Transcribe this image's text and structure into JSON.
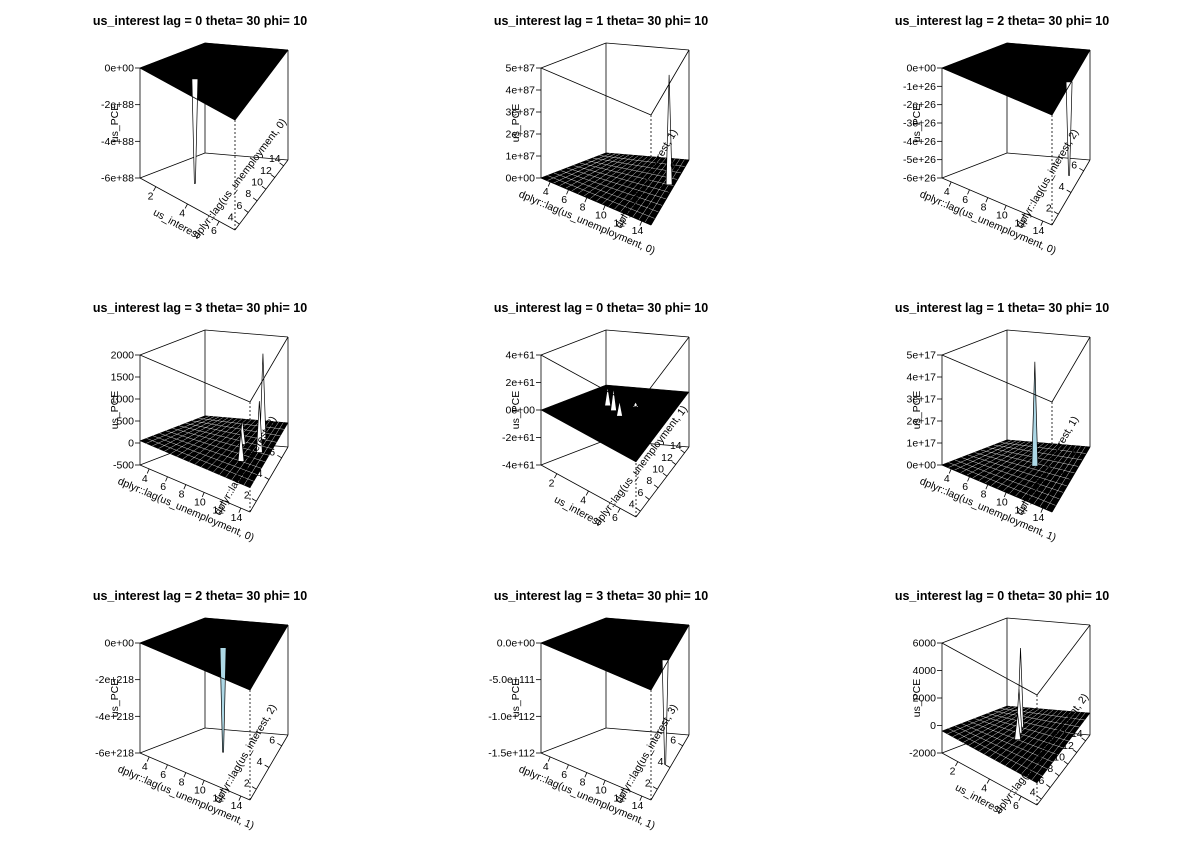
{
  "colors": {
    "axis": "#000000",
    "surface_dark": "#000000",
    "surface_fill": "#ffffff",
    "spike_fill": "#add8e6"
  },
  "panels": [
    {
      "title": "us_interest lag = 0 theta= 30 phi= 10",
      "zlabel": "us_PCE",
      "xlabel": "us_interest",
      "ylabel": "dplyr::lag(us_unemployment, 0)",
      "zticks": [
        "0e+00",
        "-2e+88",
        "-4e+88",
        "-6e+88"
      ],
      "xticks": [
        "2",
        "4",
        "6"
      ],
      "yticks": [
        "4",
        "6",
        "8",
        "10",
        "12",
        "14"
      ],
      "chart_data": {
        "type": "surface",
        "theta": 30,
        "phi": 10,
        "surface": "flat plane at top with one deep downward spike"
      }
    },
    {
      "title": "us_interest lag = 1 theta= 30 phi= 10",
      "zlabel": "us_PCE",
      "xlabel": "dplyr::lag(us_unemployment, 0)",
      "ylabel": "dplyr::lag(us_interest, 1)",
      "zticks": [
        "5e+87",
        "4e+87",
        "3e+87",
        "2e+87",
        "1e+87",
        "0e+00"
      ],
      "xticks": [
        "4",
        "6",
        "8",
        "10",
        "12",
        "14"
      ],
      "yticks": [
        "2",
        "4",
        "6"
      ],
      "chart_data": {
        "type": "surface",
        "theta": 30,
        "phi": 10,
        "surface": "flat mesh at bottom with one tall spike at back-right"
      }
    },
    {
      "title": "us_interest lag = 2 theta= 30 phi= 10",
      "zlabel": "us_PCE",
      "xlabel": "dplyr::lag(us_unemployment, 0)",
      "ylabel": "dplyr::lag(us_interest, 2)",
      "zticks": [
        "0e+00",
        "-1e+26",
        "-2e+26",
        "-3e+26",
        "-4e+26",
        "-5e+26",
        "-6e+26"
      ],
      "xticks": [
        "4",
        "6",
        "8",
        "10",
        "12",
        "14"
      ],
      "yticks": [
        "2",
        "4",
        "6"
      ],
      "chart_data": {
        "type": "surface",
        "theta": 30,
        "phi": 10,
        "surface": "flat plane at top with spike down at right edge"
      }
    },
    {
      "title": "us_interest lag = 3 theta= 30 phi= 10",
      "zlabel": "us_PCE",
      "xlabel": "dplyr::lag(us_unemployment, 0)",
      "ylabel": "dplyr::lag(us_interest, 3)",
      "zticks": [
        "2000",
        "1500",
        "1000",
        "500",
        "0",
        "-500"
      ],
      "xticks": [
        "4",
        "6",
        "8",
        "10",
        "12",
        "14"
      ],
      "yticks": [
        "2",
        "4",
        "6"
      ],
      "chart_data": {
        "type": "surface",
        "theta": 30,
        "phi": 10,
        "surface": "mesh near 0 with several spikes up to about 2000"
      }
    },
    {
      "title": "us_interest lag = 0 theta= 30 phi= 10",
      "zlabel": "us_PCE",
      "xlabel": "us_interest",
      "ylabel": "dplyr::lag(us_unemployment, 1)",
      "zticks": [
        "4e+61",
        "2e+61",
        "0e+00",
        "-2e+61",
        "-4e+61"
      ],
      "xticks": [
        "2",
        "4",
        "6"
      ],
      "yticks": [
        "4",
        "6",
        "8",
        "10",
        "12",
        "14"
      ],
      "chart_data": {
        "type": "surface",
        "theta": 30,
        "phi": 10,
        "surface": "flat plane at 0 with a few spikes to about 4e+61"
      }
    },
    {
      "title": "us_interest lag = 1 theta= 30 phi= 10",
      "zlabel": "us_PCE",
      "xlabel": "dplyr::lag(us_unemployment, 1)",
      "ylabel": "dplyr::lag(us_interest, 1)",
      "zticks": [
        "5e+17",
        "4e+17",
        "3e+17",
        "2e+17",
        "1e+17",
        "0e+00"
      ],
      "xticks": [
        "4",
        "6",
        "8",
        "10",
        "12",
        "14"
      ],
      "yticks": [
        "2",
        "4",
        "6"
      ],
      "chart_data": {
        "type": "surface",
        "theta": 30,
        "phi": 10,
        "surface": "flat mesh at bottom with one tall spike"
      }
    },
    {
      "title": "us_interest lag = 2 theta= 30 phi= 10",
      "zlabel": "us_PCE",
      "xlabel": "dplyr::lag(us_unemployment, 1)",
      "ylabel": "dplyr::lag(us_interest, 2)",
      "zticks": [
        "0e+00",
        "-2e+218",
        "-4e+218",
        "-6e+218"
      ],
      "xticks": [
        "4",
        "6",
        "8",
        "10",
        "12",
        "14"
      ],
      "yticks": [
        "2",
        "4",
        "6"
      ],
      "chart_data": {
        "type": "surface",
        "theta": 30,
        "phi": 10,
        "surface": "flat plane at top with one deep spike downward"
      }
    },
    {
      "title": "us_interest lag = 3 theta= 30 phi= 10",
      "zlabel": "us_PCE",
      "xlabel": "dplyr::lag(us_unemployment, 1)",
      "ylabel": "dplyr::lag(us_interest, 3)",
      "zticks": [
        "0.0e+00",
        "-5.0e+111",
        "-1.0e+112",
        "-1.5e+112"
      ],
      "xticks": [
        "4",
        "6",
        "8",
        "10",
        "12",
        "14"
      ],
      "yticks": [
        "2",
        "4",
        "6"
      ],
      "chart_data": {
        "type": "surface",
        "theta": 30,
        "phi": 10,
        "surface": "flat plane at top with spike down at right edge"
      }
    },
    {
      "title": "us_interest lag = 0 theta= 30 phi= 10",
      "zlabel": "us_PCE",
      "xlabel": "us_interest",
      "ylabel": "dplyr::lag(us_unemployment, 2)",
      "zticks": [
        "6000",
        "4000",
        "2000",
        "0",
        "-2000"
      ],
      "xticks": [
        "2",
        "4",
        "6"
      ],
      "yticks": [
        "4",
        "6",
        "8",
        "10",
        "12",
        "14"
      ],
      "chart_data": {
        "type": "surface",
        "theta": 30,
        "phi": 10,
        "surface": "mesh near 0 with spikes up to about 6000"
      }
    }
  ]
}
